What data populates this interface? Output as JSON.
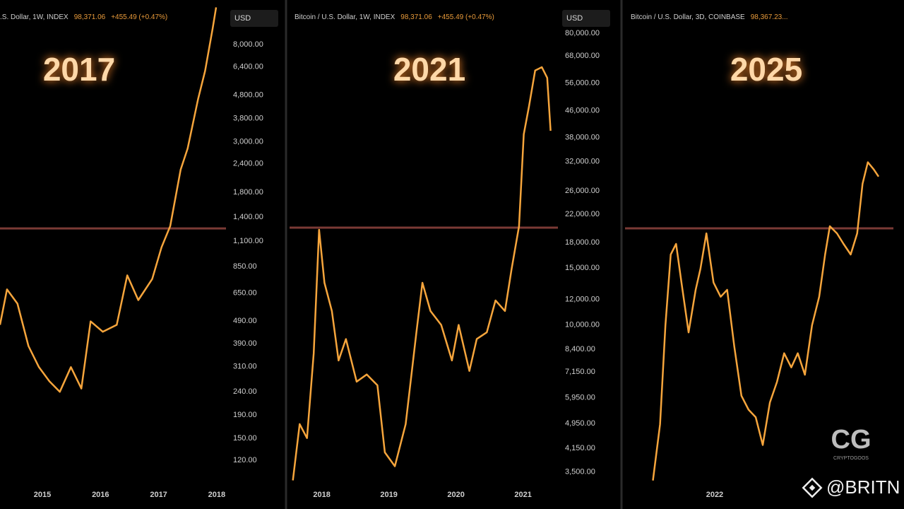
{
  "chart_data": [
    {
      "type": "line",
      "symbol": ".S. Dollar, 1W, INDEX",
      "price": "98,371.06",
      "change": "+455.49 (+0.47%)",
      "currency": "USD",
      "label": "2017",
      "log": true,
      "xlim": [
        2014.27,
        2018.16
      ],
      "xticks": [
        2015,
        2016,
        2017,
        2018
      ],
      "ylim": [
        91,
        11700
      ],
      "yticks": [
        {
          "value": 8000,
          "label": "8,000.00"
        },
        {
          "value": 6400,
          "label": "6,400.00"
        },
        {
          "value": 4800,
          "label": "4,800.00"
        },
        {
          "value": 3800,
          "label": "3,800.00"
        },
        {
          "value": 3000,
          "label": "3,000.00"
        },
        {
          "value": 2400,
          "label": "2,400.00"
        },
        {
          "value": 1800,
          "label": "1,800.00"
        },
        {
          "value": 1400,
          "label": "1,400.00"
        },
        {
          "value": 1100,
          "label": "1,100.00"
        },
        {
          "value": 850,
          "label": "850.00"
        },
        {
          "value": 650,
          "label": "650.00"
        },
        {
          "value": 490,
          "label": "490.00"
        },
        {
          "value": 390,
          "label": "390.00"
        },
        {
          "value": 310,
          "label": "310.00"
        },
        {
          "value": 240,
          "label": "240.00"
        },
        {
          "value": 190,
          "label": "190.00"
        },
        {
          "value": 150,
          "label": "150.00"
        },
        {
          "value": 120,
          "label": "120.00"
        }
      ],
      "hline": {
        "value": 1250,
        "color": "#7a3a35"
      },
      "x": [
        2014.27,
        2014.39,
        2014.57,
        2014.76,
        2014.94,
        2015.12,
        2015.3,
        2015.49,
        2015.67,
        2015.83,
        2016.04,
        2016.28,
        2016.46,
        2016.65,
        2016.89,
        2017.05,
        2017.2,
        2017.38,
        2017.5,
        2017.68,
        2017.8,
        2017.93,
        2017.99
      ],
      "series": [
        {
          "color": "#f6a53c",
          "values": [
            472,
            675,
            585,
            381,
            308,
            267,
            240,
            308,
            248,
            489,
            440,
            472,
            778,
            606,
            750,
            1033,
            1279,
            2265,
            2805,
            4624,
            6138,
            9420,
            11670
          ]
        }
      ]
    },
    {
      "type": "line",
      "symbol": "Bitcoin / U.S. Dollar, 1W, INDEX",
      "price": "98,371.06",
      "change": "+455.49 (+0.47%)",
      "currency": "USD",
      "label": "2021",
      "log": true,
      "xlim": [
        2017.52,
        2021.52
      ],
      "xticks": [
        2018,
        2019,
        2020,
        2021
      ],
      "ylim": [
        3130,
        96400
      ],
      "yticks": [
        {
          "value": 80000,
          "label": "80,000.00"
        },
        {
          "value": 68000,
          "label": "68,000.00"
        },
        {
          "value": 56000,
          "label": "56,000.00"
        },
        {
          "value": 46000,
          "label": "46,000.00"
        },
        {
          "value": 38000,
          "label": "38,000.00"
        },
        {
          "value": 32000,
          "label": "32,000.00"
        },
        {
          "value": 26000,
          "label": "26,000.00"
        },
        {
          "value": 22000,
          "label": "22,000.00"
        },
        {
          "value": 18000,
          "label": "18,000.00"
        },
        {
          "value": 15000,
          "label": "15,000.00"
        },
        {
          "value": 12000,
          "label": "12,000.00"
        },
        {
          "value": 10000,
          "label": "10,000.00"
        },
        {
          "value": 8400,
          "label": "8,400.00"
        },
        {
          "value": 7150,
          "label": "7,150.00"
        },
        {
          "value": 5950,
          "label": "5,950.00"
        },
        {
          "value": 4950,
          "label": "4,950.00"
        },
        {
          "value": 4150,
          "label": "4,150.00"
        },
        {
          "value": 3500,
          "label": "3,500.00"
        }
      ],
      "hline": {
        "value": 20000,
        "color": "#7a3a35"
      },
      "x": [
        2017.57,
        2017.67,
        2017.78,
        2017.88,
        2017.96,
        2018.04,
        2018.15,
        2018.25,
        2018.36,
        2018.52,
        2018.67,
        2018.83,
        2018.94,
        2019.09,
        2019.25,
        2019.41,
        2019.5,
        2019.62,
        2019.78,
        2019.94,
        2020.04,
        2020.2,
        2020.31,
        2020.46,
        2020.59,
        2020.73,
        2020.83,
        2020.94,
        2021.01,
        2021.09,
        2021.18,
        2021.28,
        2021.36,
        2021.41
      ],
      "series": [
        {
          "color": "#f6a53c",
          "values": [
            3300,
            4930,
            4460,
            8170,
            19700,
            13500,
            11040,
            7760,
            9040,
            6670,
            7020,
            6500,
            4030,
            3650,
            4930,
            9480,
            13500,
            11040,
            10000,
            7760,
            10000,
            7200,
            9040,
            9480,
            11900,
            11040,
            14900,
            20200,
            38900,
            47600,
            61300,
            62800,
            58200,
            39900
          ]
        }
      ]
    },
    {
      "type": "line",
      "symbol": "Bitcoin / U.S. Dollar, 3D, COINBASE",
      "price": "98,367.23...",
      "label": "2025",
      "log": true,
      "xlim": [
        2020.49,
        2025.01
      ],
      "xticks": [
        2022
      ],
      "ylim": [
        11900,
        309000
      ],
      "hline": {
        "value": 69000,
        "color": "#7a3a35"
      },
      "x": [
        2020.96,
        2021.08,
        2021.17,
        2021.26,
        2021.35,
        2021.44,
        2021.56,
        2021.68,
        2021.76,
        2021.86,
        2021.98,
        2022.1,
        2022.21,
        2022.33,
        2022.45,
        2022.57,
        2022.69,
        2022.81,
        2022.93,
        2023.05,
        2023.17,
        2023.29,
        2023.4,
        2023.52,
        2023.64,
        2023.76,
        2023.86,
        2023.94,
        2024.06,
        2024.17,
        2024.29,
        2024.4,
        2024.49,
        2024.58,
        2024.68,
        2024.76
      ],
      "series": [
        {
          "color": "#f6a53c",
          "values": [
            12500,
            18300,
            35800,
            57800,
            62100,
            47800,
            34100,
            45500,
            52500,
            66700,
            47800,
            43400,
            45500,
            31000,
            22200,
            20200,
            19200,
            15900,
            21200,
            24400,
            29600,
            26900,
            29600,
            25600,
            35800,
            43400,
            57800,
            70000,
            66700,
            62100,
            57800,
            66700,
            93300,
            108000,
            102800,
            98000
          ]
        }
      ]
    }
  ],
  "logo_text": "CG",
  "logo_caption": "CRYPTOGOOS",
  "handle": "@BRITN"
}
